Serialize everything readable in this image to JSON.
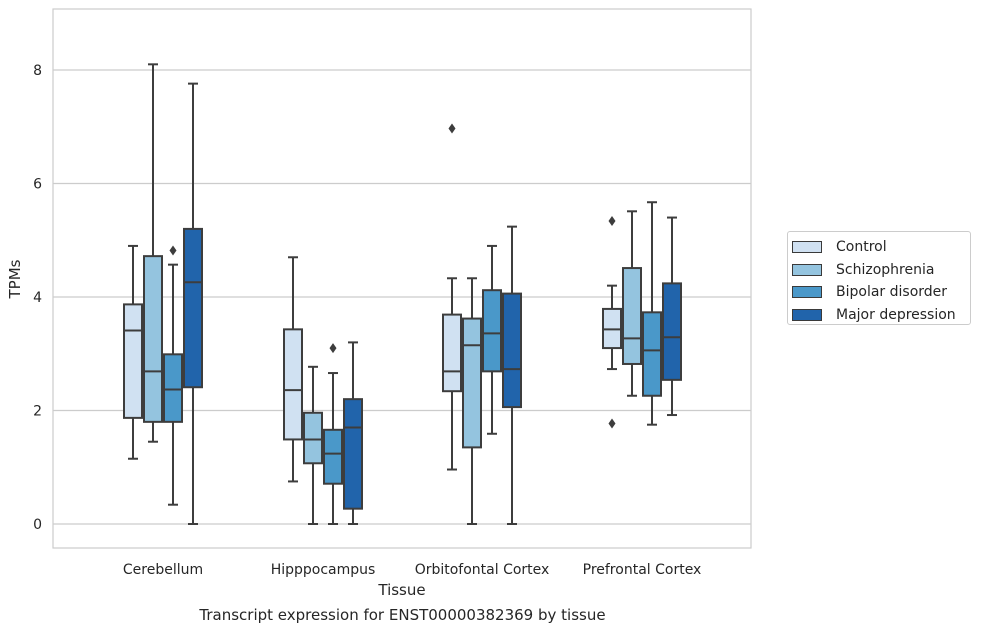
{
  "chart_data": {
    "type": "box",
    "title": "",
    "caption": "Transcript expression for ENST00000382369 by tissue",
    "xlabel": "Tissue",
    "ylabel": "TPMs",
    "ylim": [
      -0.4,
      9.1
    ],
    "yticks": [
      0,
      2,
      4,
      6,
      8
    ],
    "grid": "horizontal",
    "legend_position": "right",
    "categories": [
      "Cerebellum",
      "Hipppocampus",
      "Orbitofontal Cortex",
      "Prefrontal Cortex"
    ],
    "series": [
      {
        "name": "Control",
        "color": "#d0e1f2",
        "boxes": [
          {
            "whislo": 1.15,
            "q1": 1.87,
            "med": 3.41,
            "q3": 3.87,
            "whishi": 4.9,
            "fliers": []
          },
          {
            "whislo": 0.75,
            "q1": 1.49,
            "med": 2.36,
            "q3": 3.43,
            "whishi": 4.7,
            "fliers": []
          },
          {
            "whislo": 0.96,
            "q1": 2.34,
            "med": 2.69,
            "q3": 3.69,
            "whishi": 4.33,
            "fliers": [
              6.97
            ]
          },
          {
            "whislo": 2.73,
            "q1": 3.1,
            "med": 3.43,
            "q3": 3.79,
            "whishi": 4.2,
            "fliers": [
              5.34,
              1.77
            ]
          }
        ]
      },
      {
        "name": "Schizophrenia",
        "color": "#94c4df",
        "boxes": [
          {
            "whislo": 1.45,
            "q1": 1.8,
            "med": 2.69,
            "q3": 4.72,
            "whishi": 8.1,
            "fliers": []
          },
          {
            "whislo": 0.0,
            "q1": 1.07,
            "med": 1.49,
            "q3": 1.96,
            "whishi": 2.77,
            "fliers": []
          },
          {
            "whislo": 0.0,
            "q1": 1.35,
            "med": 3.15,
            "q3": 3.62,
            "whishi": 4.33,
            "fliers": []
          },
          {
            "whislo": 2.26,
            "q1": 2.82,
            "med": 3.27,
            "q3": 4.51,
            "whishi": 5.51,
            "fliers": []
          }
        ]
      },
      {
        "name": "Bipolar disorder",
        "color": "#4a98c9",
        "boxes": [
          {
            "whislo": 0.34,
            "q1": 1.8,
            "med": 2.37,
            "q3": 2.99,
            "whishi": 4.57,
            "fliers": [
              4.82
            ]
          },
          {
            "whislo": 0.0,
            "q1": 0.71,
            "med": 1.24,
            "q3": 1.66,
            "whishi": 2.66,
            "fliers": [
              3.1
            ]
          },
          {
            "whislo": 1.59,
            "q1": 2.69,
            "med": 3.36,
            "q3": 4.12,
            "whishi": 4.9,
            "fliers": []
          },
          {
            "whislo": 1.75,
            "q1": 2.26,
            "med": 3.06,
            "q3": 3.73,
            "whishi": 5.67,
            "fliers": []
          }
        ]
      },
      {
        "name": "Major depression",
        "color": "#2164ab",
        "boxes": [
          {
            "whislo": 0.0,
            "q1": 2.41,
            "med": 4.26,
            "q3": 5.2,
            "whishi": 7.76,
            "fliers": []
          },
          {
            "whislo": 0.0,
            "q1": 0.27,
            "med": 1.7,
            "q3": 2.2,
            "whishi": 3.2,
            "fliers": []
          },
          {
            "whislo": 0.0,
            "q1": 2.06,
            "med": 2.73,
            "q3": 4.06,
            "whishi": 5.24,
            "fliers": []
          },
          {
            "whislo": 1.92,
            "q1": 2.54,
            "med": 3.29,
            "q3": 4.24,
            "whishi": 5.4,
            "fliers": []
          }
        ]
      }
    ]
  }
}
